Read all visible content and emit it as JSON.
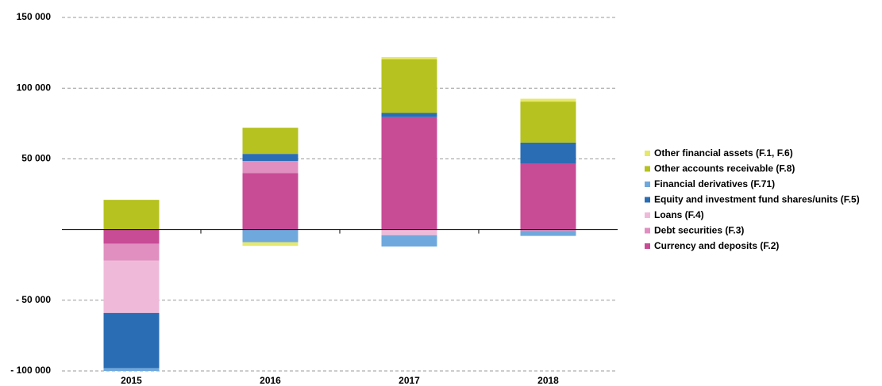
{
  "chart_data": {
    "type": "stacked-bar",
    "categories": [
      "2015",
      "2016",
      "2017",
      "2018"
    ],
    "series": [
      {
        "name": "Currency and deposits (F.2)",
        "color": "#c84b96",
        "values": [
          -10000,
          40000,
          79500,
          46500
        ]
      },
      {
        "name": "Debt securities (F.3)",
        "color": "#e08fc0",
        "values": [
          -12000,
          8500,
          0,
          -1000
        ]
      },
      {
        "name": "Loans (F.4)",
        "color": "#efbad9",
        "values": [
          -37000,
          0,
          -4000,
          0
        ]
      },
      {
        "name": "Equity and investment fund shares/units (F.5)",
        "color": "#2a6db5",
        "values": [
          -39000,
          5000,
          3000,
          15000
        ]
      },
      {
        "name": "Financial derivatives (F.71)",
        "color": "#6fa8dc",
        "values": [
          -2000,
          -9000,
          -8000,
          -3500
        ]
      },
      {
        "name": "Other accounts receivable (F.8)",
        "color": "#b5c21f",
        "values": [
          21000,
          18500,
          38000,
          29000
        ]
      },
      {
        "name": "Other financial assets (F.1, F.6)",
        "color": "#e6e86a",
        "values": [
          0,
          -2500,
          1500,
          2000
        ]
      }
    ],
    "ylim": [
      -100000,
      150000
    ],
    "yticks": [
      {
        "value": -100000,
        "label": "- 100 000"
      },
      {
        "value": -50000,
        "label": "- 50 000"
      },
      {
        "value": 50000,
        "label": "50 000"
      },
      {
        "value": 100000,
        "label": "100 000"
      },
      {
        "value": 150000,
        "label": "150 000"
      }
    ],
    "grid": true,
    "legend": "right"
  }
}
